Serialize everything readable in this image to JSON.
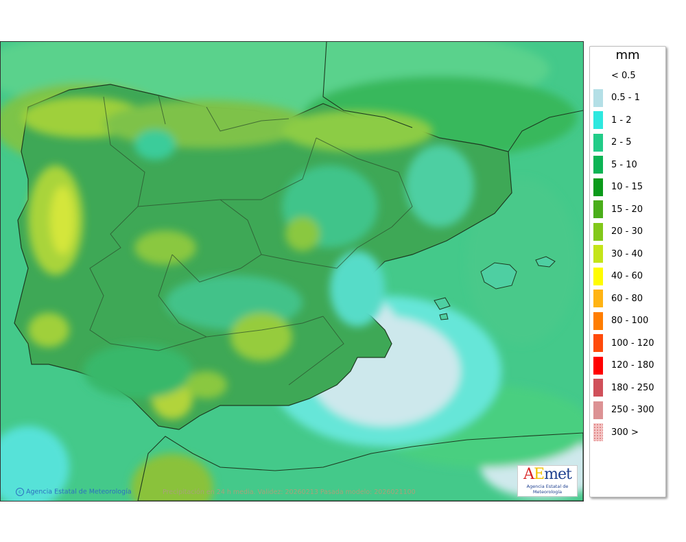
{
  "legend": {
    "unit": "mm",
    "classes": [
      {
        "label": "< 0.5",
        "color": "#ffffff"
      },
      {
        "label": "0.5 - 1",
        "color": "#b4dfe6"
      },
      {
        "label": "1 - 2",
        "color": "#2ee8df"
      },
      {
        "label": "2 - 5",
        "color": "#22cc88"
      },
      {
        "label": "5 - 10",
        "color": "#0cb454"
      },
      {
        "label": "10 - 15",
        "color": "#0a9a1a"
      },
      {
        "label": "15 - 20",
        "color": "#4aae1a"
      },
      {
        "label": "20 - 30",
        "color": "#82c81a"
      },
      {
        "label": "30 - 40",
        "color": "#c4e41a"
      },
      {
        "label": "40 - 60",
        "color": "#fffc00"
      },
      {
        "label": "60 - 80",
        "color": "#ffb414"
      },
      {
        "label": "80 - 100",
        "color": "#ff7d00"
      },
      {
        "label": "100 - 120",
        "color": "#ff4a0a"
      },
      {
        "label": "120 - 180",
        "color": "#ff0000"
      },
      {
        "label": "180 - 250",
        "color": "#d0505a"
      },
      {
        "label": "250 - 300",
        "color": "#dc9294"
      },
      {
        "label": "300 >",
        "color": "#f3c4c4"
      }
    ]
  },
  "footer": {
    "credit": "Agencia Estatal de Meteorología",
    "validity": "Precipitación en 24 h media. Validez: 20260213 Pasada modelo: 2026021100"
  },
  "logo": {
    "brand_a": "A",
    "brand_e": "E",
    "brand_rest": "met",
    "subtitle": "Agencia Estatal de Meteorología"
  },
  "colors": {
    "sea_base": "#3fcf8e",
    "land_base": "#3aab58",
    "dry_zone": "#cfe9ec",
    "low_zone": "#64e8d8",
    "wet_zone": "#a6d23a",
    "wettest_zone": "#d3e63a"
  }
}
